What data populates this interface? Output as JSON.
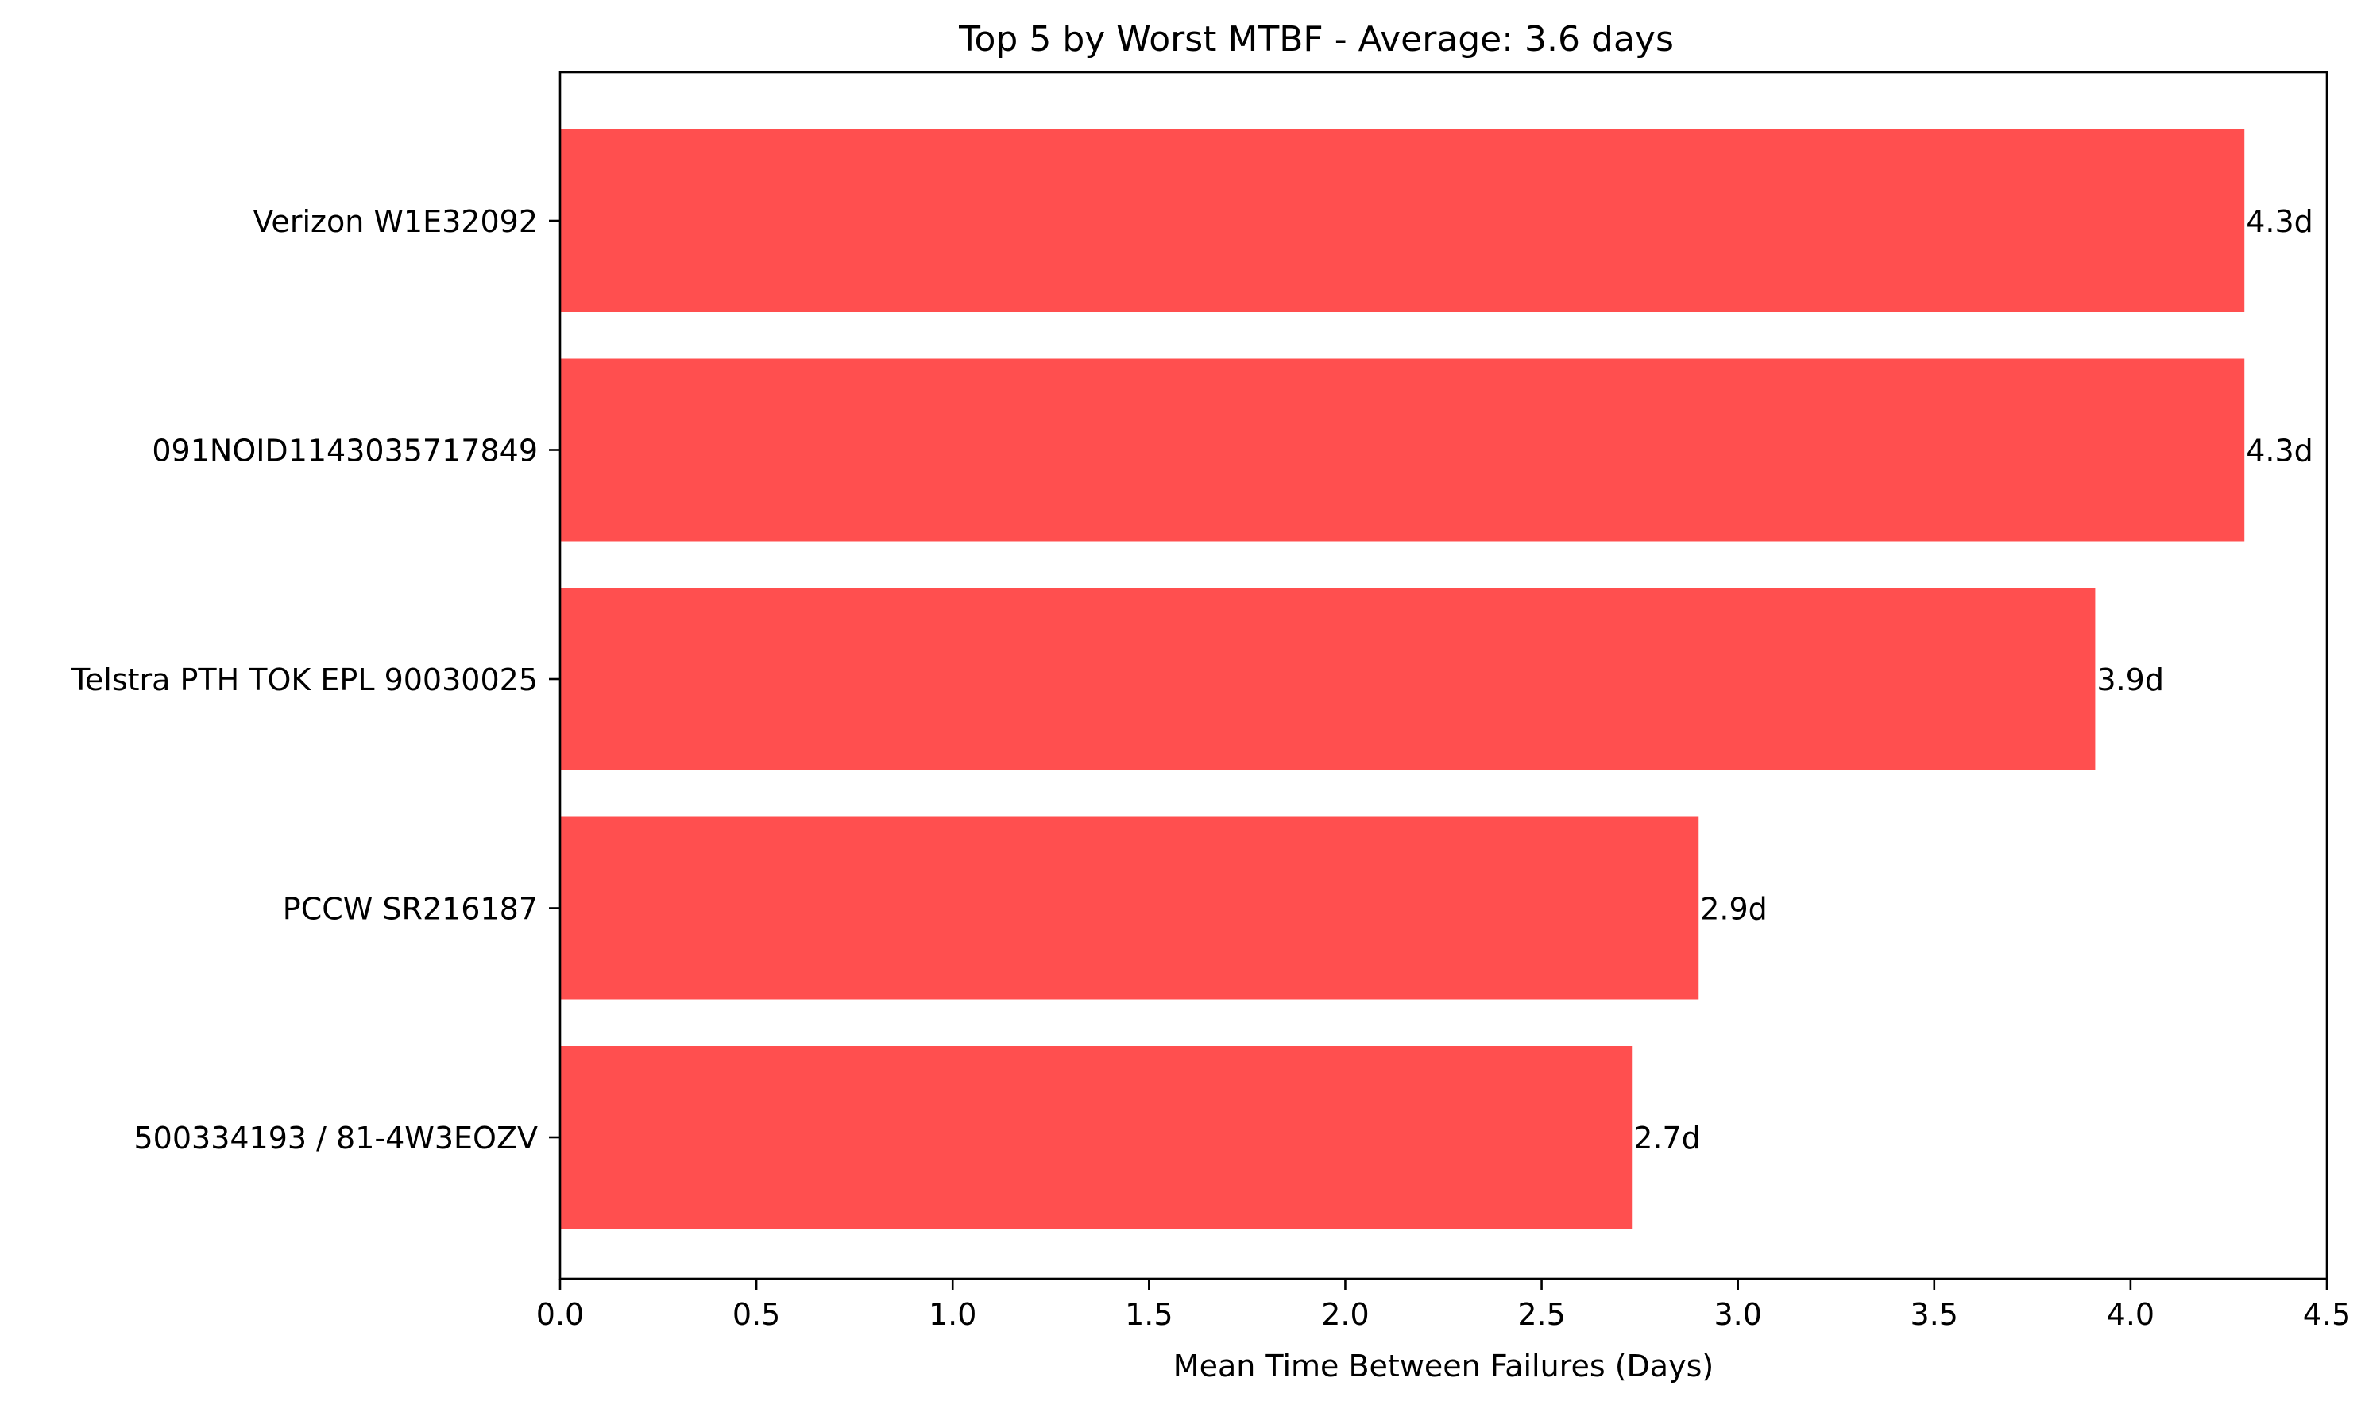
{
  "chart_data": {
    "type": "bar",
    "orientation": "horizontal",
    "title": "Top 5 by Worst MTBF - Average: 3.6 days",
    "xlabel": "Mean Time Between Failures (Days)",
    "ylabel": "",
    "xlim": [
      0,
      4.5
    ],
    "xticks": [
      0.0,
      0.5,
      1.0,
      1.5,
      2.0,
      2.5,
      3.0,
      3.5,
      4.0,
      4.5
    ],
    "xtick_labels": [
      "0.0",
      "0.5",
      "1.0",
      "1.5",
      "2.0",
      "2.5",
      "3.0",
      "3.5",
      "4.0",
      "4.5"
    ],
    "grid": false,
    "legend": "none",
    "bar_color": "#ff4f4f",
    "categories": [
      "Verizon W1E32092",
      "091NOID1143035717849",
      "Telstra PTH TOK EPL 90030025",
      "PCCW SR216187",
      "500334193 / 81-4W3EOZV"
    ],
    "values": [
      4.29,
      4.29,
      3.91,
      2.9,
      2.73
    ],
    "data_labels": [
      "4.3d",
      "4.3d",
      "3.9d",
      "2.9d",
      "2.7d"
    ]
  }
}
